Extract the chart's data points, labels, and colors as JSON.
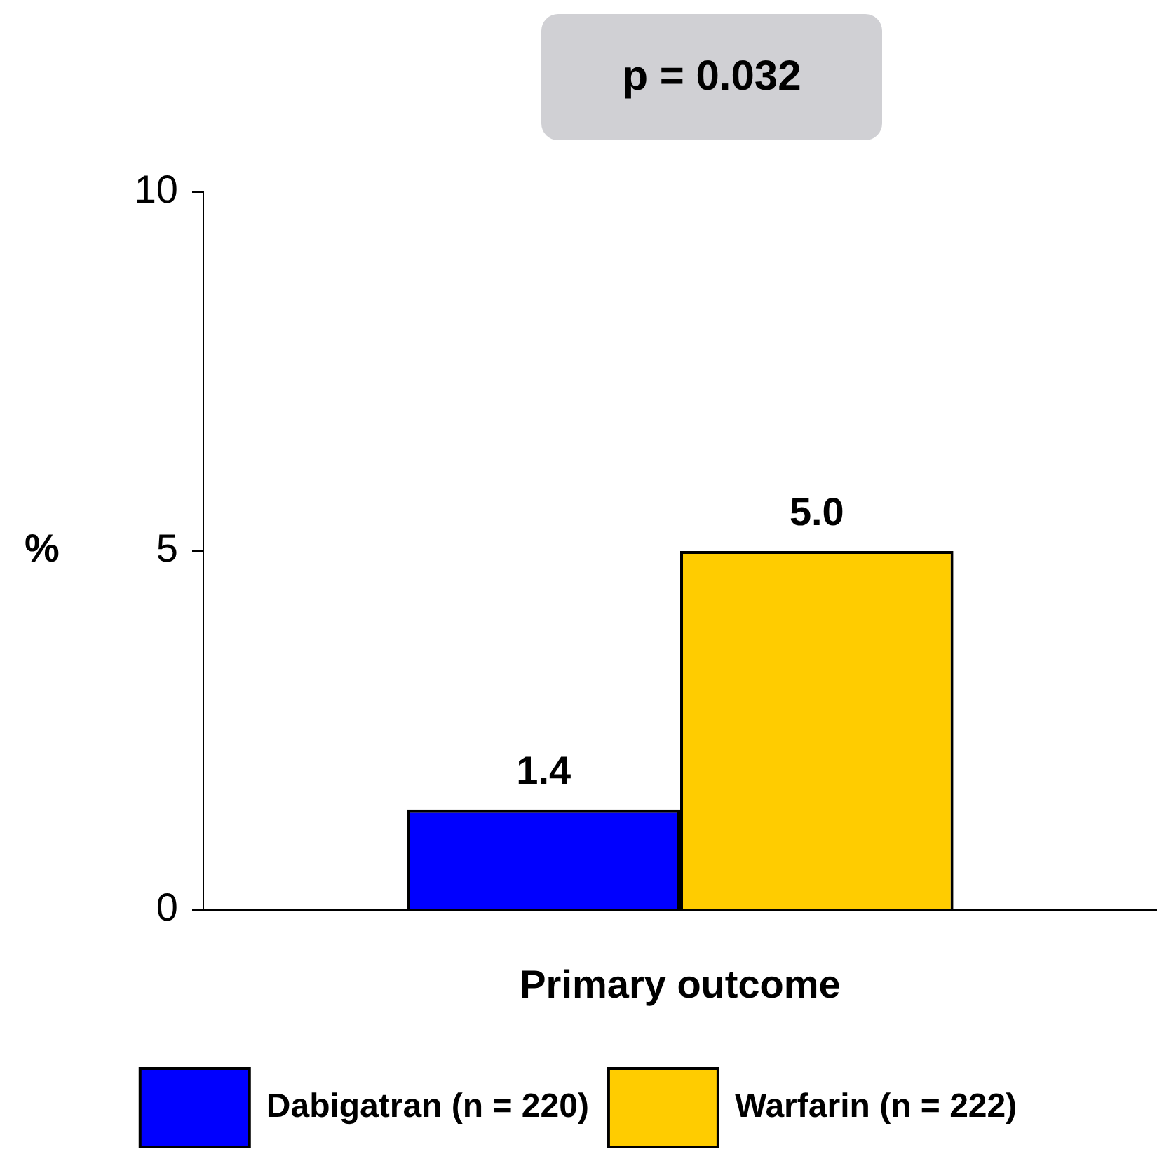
{
  "chart_data": {
    "type": "bar",
    "categories": [
      "Primary outcome"
    ],
    "ylabel": "%",
    "series": [
      {
        "name": "Dabigatran\n(n = 220)",
        "color": "#0000ff",
        "values": [
          1.4
        ],
        "value_labels": [
          "1.4"
        ]
      },
      {
        "name": "Warfarin\n(n = 222)",
        "color": "#ffcc00",
        "values": [
          5.0
        ],
        "value_labels": [
          "5.0"
        ]
      }
    ],
    "ylim": [
      0,
      10
    ],
    "yticks": [
      0,
      5,
      10
    ],
    "grid": false,
    "legend": "bottom",
    "annotations": [
      "p = 0.032"
    ]
  }
}
